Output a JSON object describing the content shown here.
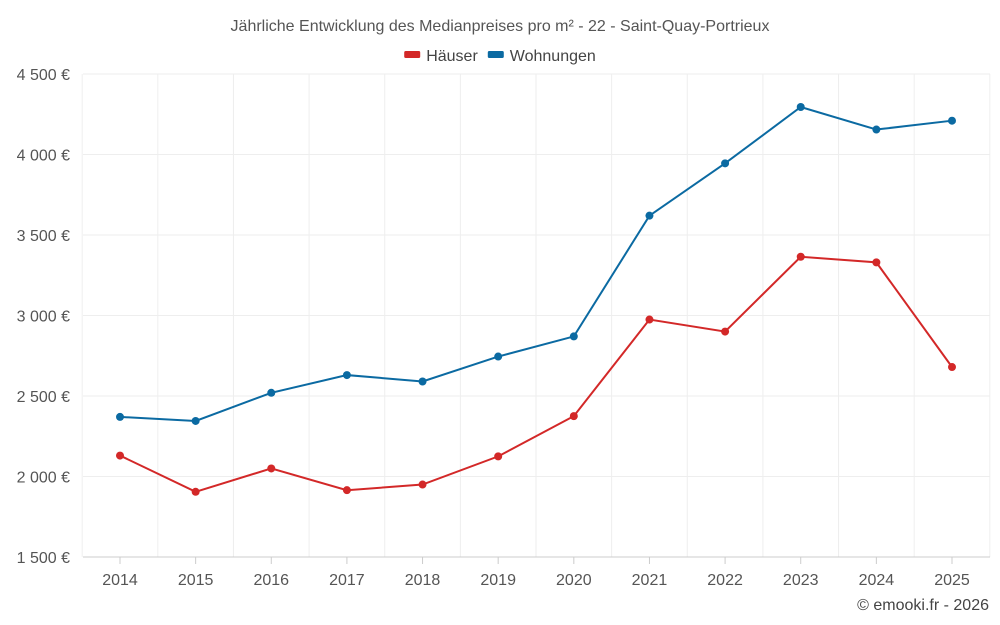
{
  "chart_data": {
    "type": "line",
    "title": "Jährliche Entwicklung des Medianpreises pro m² - 22 - Saint-Quay-Portrieux",
    "categories": [
      "2014",
      "2015",
      "2016",
      "2017",
      "2018",
      "2019",
      "2020",
      "2021",
      "2022",
      "2023",
      "2024",
      "2025"
    ],
    "series": [
      {
        "name": "Häuser",
        "color": "#d32828",
        "values": [
          2130,
          1905,
          2050,
          1915,
          1950,
          2125,
          2375,
          2975,
          2900,
          3365,
          3330,
          2680
        ]
      },
      {
        "name": "Wohnungen",
        "color": "#0b6aa2",
        "values": [
          2370,
          2345,
          2520,
          2630,
          2590,
          2745,
          2870,
          3620,
          3945,
          4295,
          4155,
          4210
        ]
      }
    ],
    "xlabel": "",
    "ylabel": "",
    "ylim": [
      1500,
      4500
    ],
    "yticks": [
      1500,
      2000,
      2500,
      3000,
      3500,
      4000,
      4500
    ],
    "ytick_labels": [
      "1 500 €",
      "2 000 €",
      "2 500 €",
      "3 000 €",
      "3 500 €",
      "4 000 €",
      "4 500 €"
    ],
    "grid": true,
    "legend_position": "top-center"
  },
  "credit": "© emooki.fr - 2026"
}
